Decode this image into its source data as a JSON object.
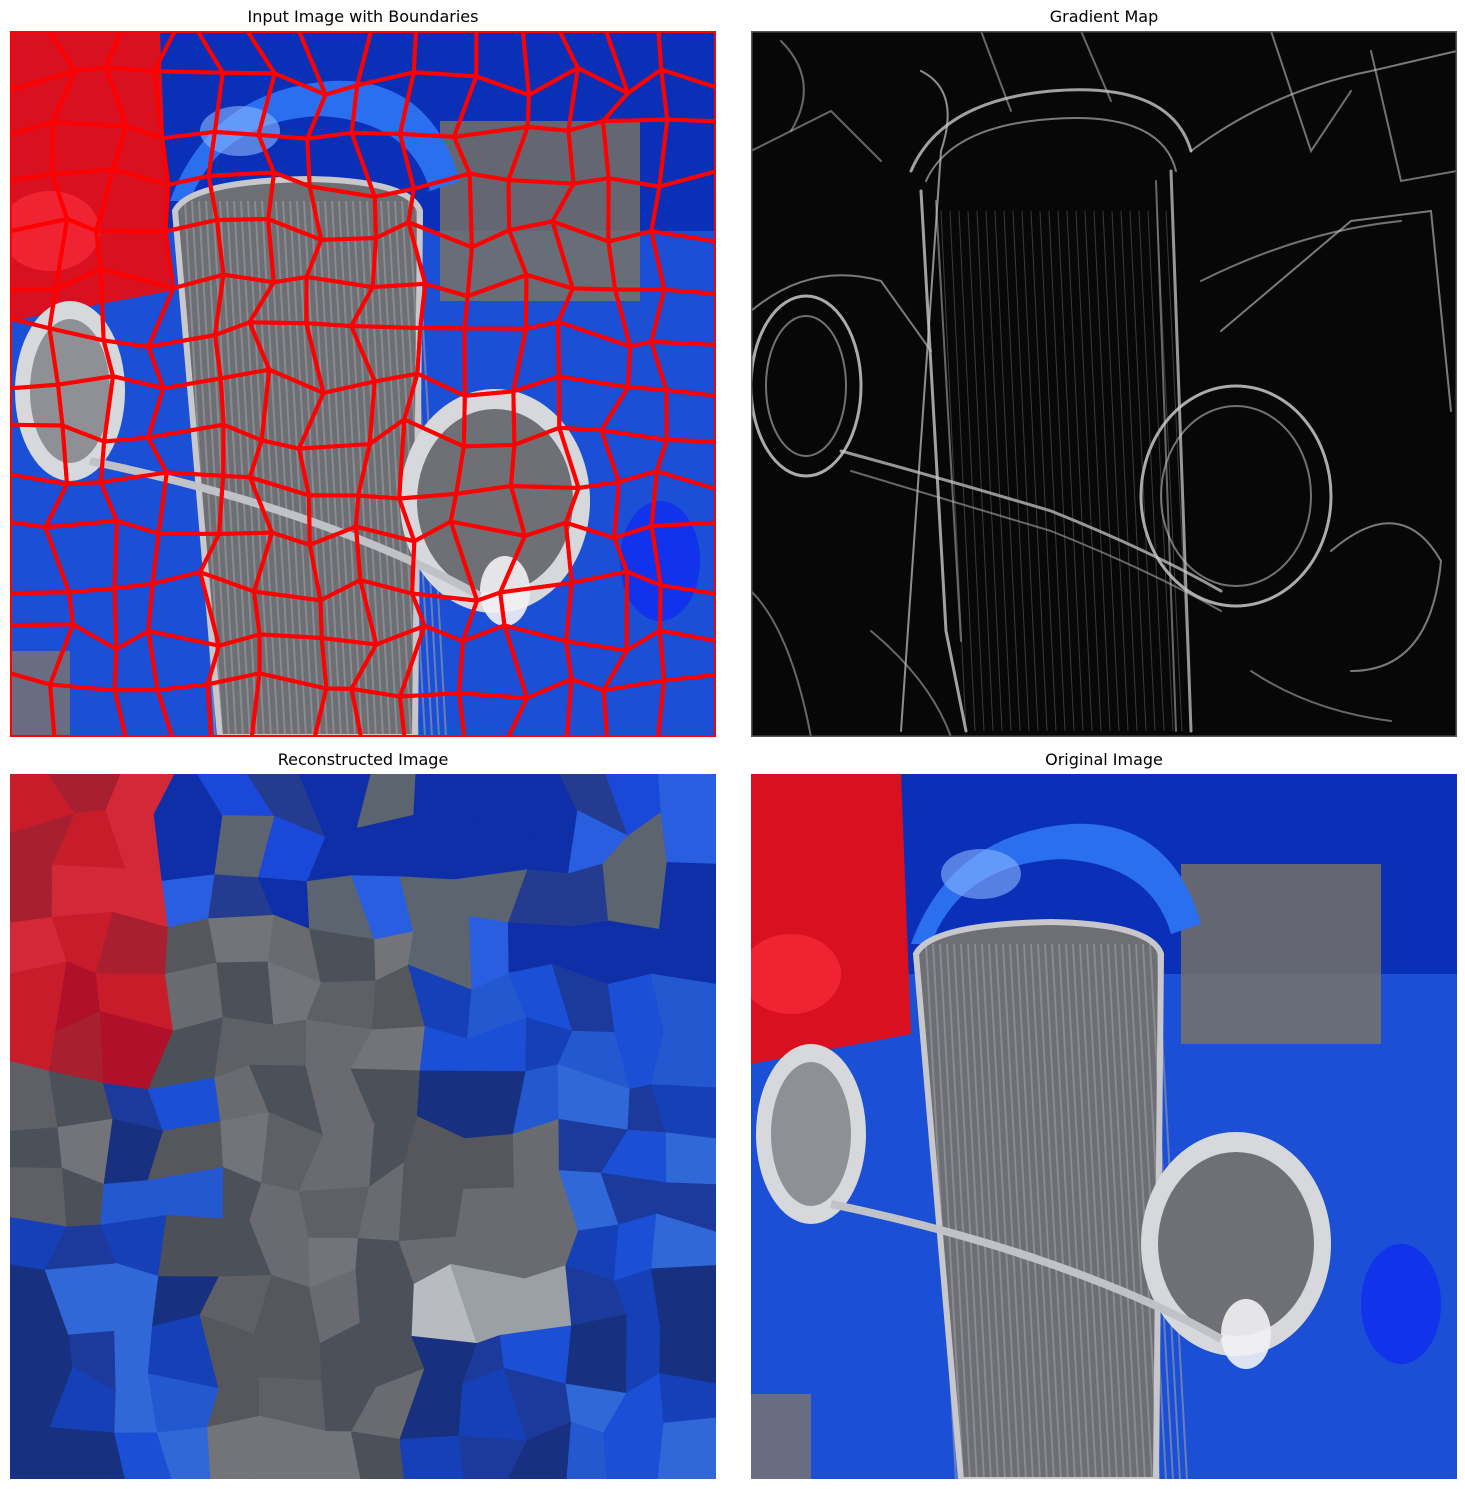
{
  "panels": {
    "boundaries": {
      "title": "Input Image with Boundaries"
    },
    "gradient": {
      "title": "Gradient Map"
    },
    "reconstructed": {
      "title": "Reconstructed Image"
    },
    "original": {
      "title": "Original Image"
    }
  },
  "colors": {
    "background": "#ffffff",
    "boundary": "#ff0000",
    "car_blue": "#1a4fd6",
    "car_red": "#d81020",
    "grille_gray": "#6d6f74",
    "gradient_bg": "#060606"
  }
}
